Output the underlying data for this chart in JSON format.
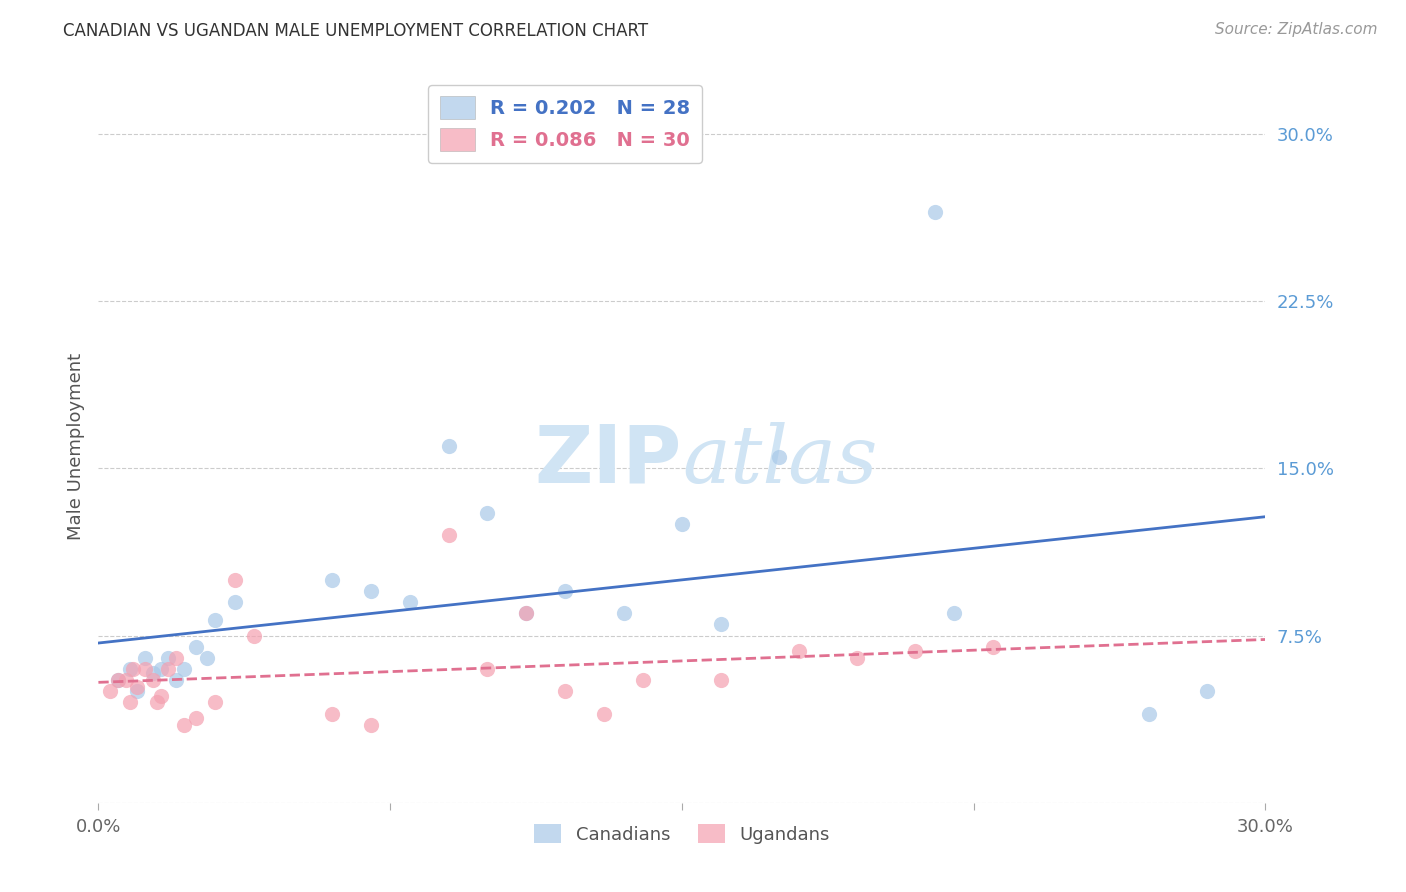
{
  "title": "CANADIAN VS UGANDAN MALE UNEMPLOYMENT CORRELATION CHART",
  "source": "Source: ZipAtlas.com",
  "ylabel": "Male Unemployment",
  "xlim": [
    0.0,
    0.3
  ],
  "ylim": [
    0.0,
    0.32
  ],
  "xtick_vals": [
    0.0,
    0.075,
    0.15,
    0.225,
    0.3
  ],
  "xtick_labels": [
    "0.0%",
    "",
    "",
    "",
    "30.0%"
  ],
  "ytick_vals": [
    0.0,
    0.075,
    0.15,
    0.225,
    0.3
  ],
  "ytick_labels_right": [
    "",
    "7.5%",
    "15.0%",
    "22.5%",
    "30.0%"
  ],
  "canadian_R": 0.202,
  "canadian_N": 28,
  "ugandan_R": 0.086,
  "ugandan_N": 30,
  "blue_color": "#a8c8e8",
  "pink_color": "#f4a0b0",
  "regression_blue": "#4472c4",
  "regression_pink": "#e07090",
  "canadians_x": [
    0.005,
    0.008,
    0.01,
    0.012,
    0.014,
    0.016,
    0.018,
    0.02,
    0.022,
    0.025,
    0.028,
    0.03,
    0.035,
    0.06,
    0.07,
    0.08,
    0.09,
    0.1,
    0.11,
    0.12,
    0.135,
    0.15,
    0.16,
    0.175,
    0.215,
    0.22,
    0.27,
    0.285
  ],
  "canadians_y": [
    0.055,
    0.06,
    0.05,
    0.065,
    0.058,
    0.06,
    0.065,
    0.055,
    0.06,
    0.07,
    0.065,
    0.082,
    0.09,
    0.1,
    0.095,
    0.09,
    0.16,
    0.13,
    0.085,
    0.095,
    0.085,
    0.125,
    0.08,
    0.155,
    0.265,
    0.085,
    0.04,
    0.05
  ],
  "ugandans_x": [
    0.003,
    0.005,
    0.007,
    0.008,
    0.009,
    0.01,
    0.012,
    0.014,
    0.015,
    0.016,
    0.018,
    0.02,
    0.022,
    0.025,
    0.03,
    0.035,
    0.04,
    0.06,
    0.07,
    0.09,
    0.1,
    0.11,
    0.12,
    0.13,
    0.14,
    0.16,
    0.18,
    0.195,
    0.21,
    0.23
  ],
  "ugandans_y": [
    0.05,
    0.055,
    0.055,
    0.045,
    0.06,
    0.052,
    0.06,
    0.055,
    0.045,
    0.048,
    0.06,
    0.065,
    0.035,
    0.038,
    0.045,
    0.1,
    0.075,
    0.04,
    0.035,
    0.12,
    0.06,
    0.085,
    0.05,
    0.04,
    0.055,
    0.055,
    0.068,
    0.065,
    0.068,
    0.07
  ],
  "background_color": "#ffffff",
  "grid_color": "#cccccc",
  "watermark_color": "#d0e4f4"
}
